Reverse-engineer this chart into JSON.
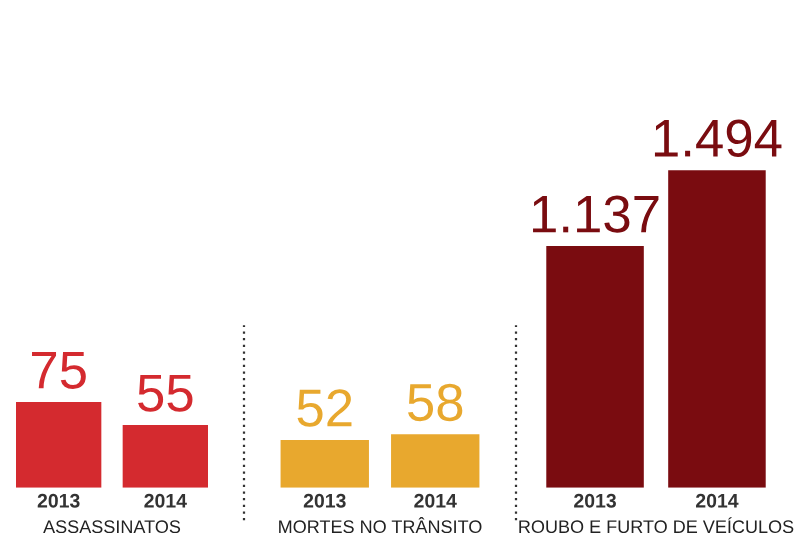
{
  "chart_data": [
    {
      "type": "bar",
      "xlabel": "ASSASSINATOS",
      "categories": [
        "2013",
        "2014"
      ],
      "values": [
        75,
        55
      ],
      "value_labels": [
        "75",
        "55"
      ],
      "color": "#d42a2f",
      "tick_labels": "x"
    },
    {
      "type": "bar",
      "xlabel": "MORTES NO TRÂNSITO",
      "categories": [
        "2013",
        "2014"
      ],
      "values": [
        52,
        58
      ],
      "value_labels": [
        "52",
        "58"
      ],
      "color": "#e8a82e",
      "tick_labels": "x"
    },
    {
      "type": "bar",
      "xlabel": "ROUBO E FURTO DE VEÍCULOS",
      "categories": [
        "2013",
        "2014"
      ],
      "values": [
        1137,
        1494
      ],
      "value_labels": [
        "1.137",
        "1.494"
      ],
      "color": "#7a0c10",
      "tick_labels": "x"
    }
  ]
}
